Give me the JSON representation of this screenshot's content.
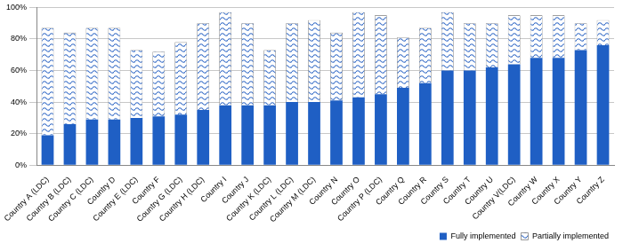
{
  "chart_data": {
    "type": "bar",
    "categories": [
      "Country A (LDC)",
      "Country B (LDC)",
      "Country C (LDC)",
      "Country D",
      "Country E (LDC)",
      "Country F",
      "Country G (LDC)",
      "Country H (LDC)",
      "Country I",
      "Country J",
      "Country K (LDC)",
      "Country L (LDC)",
      "Country M (LDC)",
      "Country N",
      "Country O",
      "Country P (LDC)",
      "Country Q",
      "Country R",
      "Country S",
      "Country T",
      "Country U",
      "Country V(LDC)",
      "Country W",
      "Country X",
      "Country Y",
      "Country Z"
    ],
    "series": [
      {
        "name": "Fully implemented",
        "color": "#1f5fc4",
        "values": [
          19,
          26,
          29,
          29,
          30,
          31,
          32,
          35,
          38,
          38,
          38,
          40,
          40,
          41,
          43,
          45,
          49,
          52,
          60,
          60,
          62,
          64,
          68,
          68,
          73,
          76
        ]
      },
      {
        "name": "Partially implemented",
        "color": "#ffffff",
        "values": [
          68,
          58,
          58,
          58,
          43,
          41,
          46,
          55,
          59,
          52,
          35,
          50,
          52,
          43,
          54,
          50,
          32,
          35,
          37,
          30,
          28,
          31,
          27,
          27,
          17,
          16
        ]
      }
    ],
    "stacked": true,
    "ylim": [
      0,
      100
    ],
    "yticks": [
      {
        "value": 0,
        "label": "0%"
      },
      {
        "value": 20,
        "label": "20%"
      },
      {
        "value": 40,
        "label": "40%"
      },
      {
        "value": 60,
        "label": "60%"
      },
      {
        "value": 80,
        "label": "80%"
      },
      {
        "value": 100,
        "label": "100%"
      }
    ],
    "grid": true,
    "legend": "bottom-right"
  }
}
